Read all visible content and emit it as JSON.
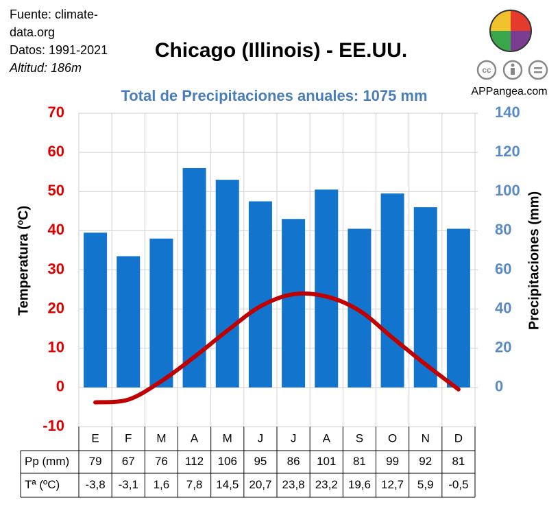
{
  "chart_data": {
    "type": "combo",
    "title": "Chicago (Illinois) - EE.UU.",
    "subtitle": "Total de Precipitaciones anuales: 1075 mm",
    "source": [
      "Fuente: climate-data.org",
      "Datos: 1991-2021",
      "Altitud: 186m"
    ],
    "logo": {
      "site": "APPangea.com",
      "license": "cc"
    },
    "categories": [
      "E",
      "F",
      "M",
      "A",
      "M",
      "J",
      "J",
      "A",
      "S",
      "O",
      "N",
      "D"
    ],
    "ylabel": "Temperatura (ºC)",
    "y2label": "Precipitaciones (mm)",
    "ylim": [
      -10,
      70
    ],
    "yticks": [
      -10,
      0,
      10,
      20,
      30,
      40,
      50,
      60,
      70
    ],
    "ycolor": "#e00000",
    "y2lim": [
      -20,
      140
    ],
    "y2ticks": [
      0,
      20,
      40,
      60,
      80,
      100,
      120,
      140
    ],
    "y2color": "#5a8ac6",
    "grid": true,
    "series": [
      {
        "name": "Pp (mm)",
        "type": "bar",
        "axis": "y2",
        "color": "#1274cc",
        "values": [
          79,
          67,
          76,
          112,
          106,
          95,
          86,
          101,
          81,
          99,
          92,
          81
        ]
      },
      {
        "name": "Tª (ºC)",
        "type": "line",
        "axis": "y",
        "color": "#c00000",
        "values": [
          -3.8,
          -3.1,
          1.6,
          7.8,
          14.5,
          20.7,
          23.8,
          23.2,
          19.6,
          12.7,
          5.9,
          -0.5
        ],
        "value_labels": [
          "-3,8",
          "-3,1",
          "1,6",
          "7,8",
          "14,5",
          "20,7",
          "23,8",
          "23,2",
          "19,6",
          "12,7",
          "5,9",
          "-0,5"
        ]
      }
    ]
  }
}
